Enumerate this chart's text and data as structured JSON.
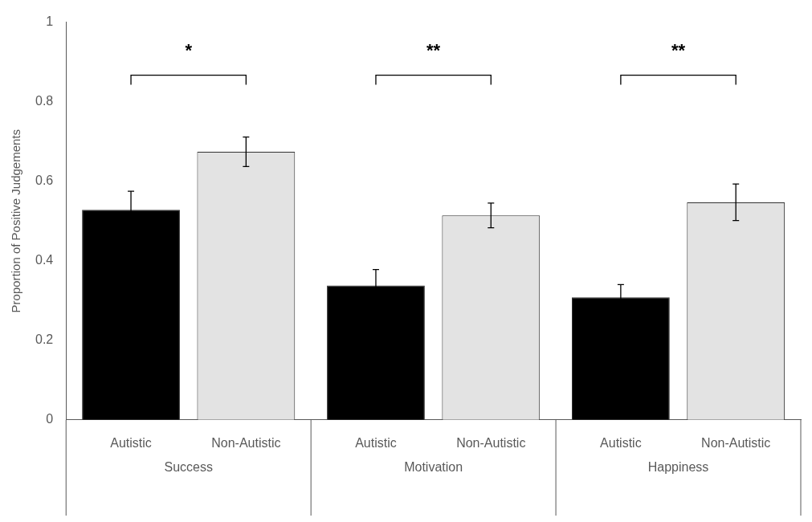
{
  "chart_data": {
    "type": "bar",
    "ylabel": "Proportion of Positive Judgements",
    "categories": [
      "Success",
      "Motivation",
      "Happiness"
    ],
    "series": [
      {
        "name": "Autistic",
        "color": "#000000",
        "values": [
          0.528,
          0.338,
          0.308
        ],
        "errors": [
          0.047,
          0.04,
          0.032
        ]
      },
      {
        "name": "Non-Autistic",
        "color": "#e3e3e3",
        "values": [
          0.674,
          0.514,
          0.547
        ],
        "errors": [
          0.037,
          0.031,
          0.046
        ]
      }
    ],
    "annotations": [
      "*",
      "**",
      "**"
    ],
    "ylim": [
      0,
      1
    ],
    "yticks": [
      0,
      0.2,
      0.4,
      0.6,
      0.8,
      1
    ],
    "grid": false,
    "legend": false
  }
}
